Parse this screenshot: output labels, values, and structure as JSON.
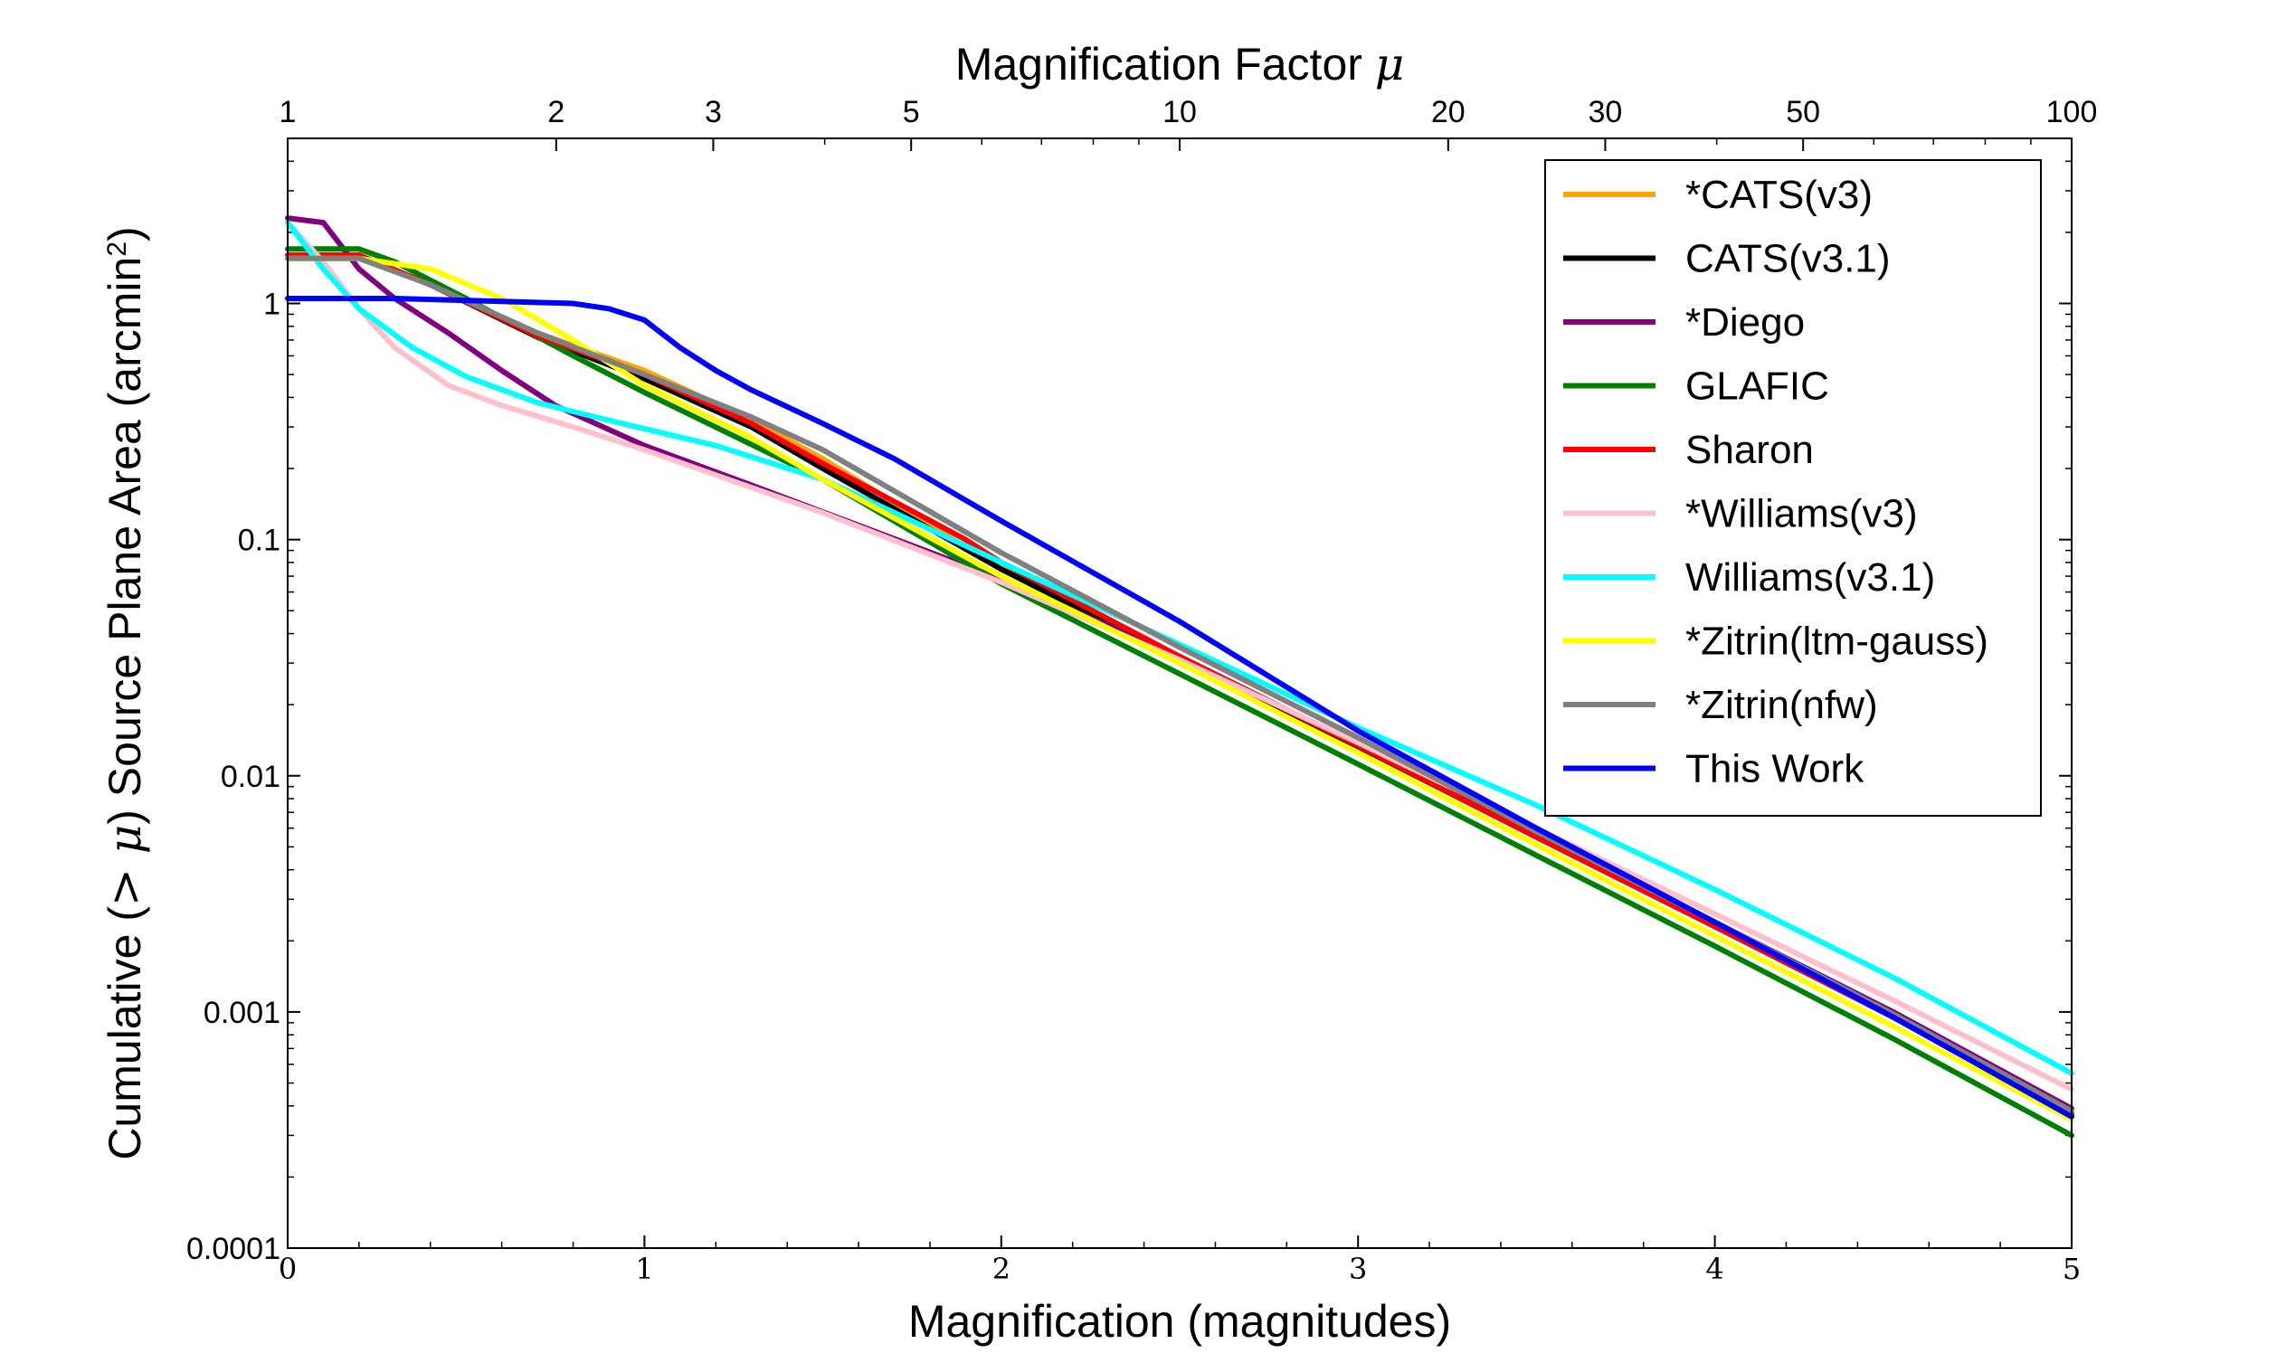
{
  "chart_data": {
    "type": "line",
    "xlabel": "Magnification (magnitudes)",
    "ylabel_parts": [
      "Cumulative (",
      "> μ",
      ") Source Plane Area (arcmin",
      "2",
      ")"
    ],
    "top_xlabel_parts": [
      "Magnification Factor ",
      "μ"
    ],
    "xlim": [
      0,
      5
    ],
    "ylim": [
      0.0001,
      5
    ],
    "yscale": "log",
    "x_ticks": [
      {
        "value": 0,
        "label": "0"
      },
      {
        "value": 1,
        "label": "1"
      },
      {
        "value": 2,
        "label": "2"
      },
      {
        "value": 3,
        "label": "3"
      },
      {
        "value": 4,
        "label": "4"
      },
      {
        "value": 5,
        "label": "5"
      }
    ],
    "y_ticks": [
      {
        "value": 0.0001,
        "label": "0.0001"
      },
      {
        "value": 0.001,
        "label": "0.001"
      },
      {
        "value": 0.01,
        "label": "0.01"
      },
      {
        "value": 0.1,
        "label": "0.1"
      },
      {
        "value": 1,
        "label": "1"
      }
    ],
    "top_ticks": [
      {
        "mu": 1,
        "label": "1"
      },
      {
        "mu": 2,
        "label": "2"
      },
      {
        "mu": 3,
        "label": "3"
      },
      {
        "mu": 5,
        "label": "5"
      },
      {
        "mu": 10,
        "label": "10"
      },
      {
        "mu": 20,
        "label": "20"
      },
      {
        "mu": 30,
        "label": "30"
      },
      {
        "mu": 50,
        "label": "50"
      },
      {
        "mu": 100,
        "label": "100"
      }
    ],
    "legend_position": "top-right",
    "series": [
      {
        "name": "*CATS(v3)",
        "color": "#FFA500",
        "points": [
          [
            0,
            1.6
          ],
          [
            0.2,
            1.6
          ],
          [
            0.4,
            1.2
          ],
          [
            0.7,
            0.75
          ],
          [
            1.0,
            0.52
          ],
          [
            1.3,
            0.32
          ],
          [
            1.5,
            0.22
          ],
          [
            2.0,
            0.075
          ],
          [
            2.5,
            0.032
          ],
          [
            3.0,
            0.0135
          ],
          [
            3.5,
            0.0055
          ],
          [
            4.0,
            0.0023
          ],
          [
            4.5,
            0.00095
          ],
          [
            5.0,
            0.00037
          ]
        ]
      },
      {
        "name": "CATS(v3.1)",
        "color": "#000000",
        "points": [
          [
            0,
            1.6
          ],
          [
            0.2,
            1.6
          ],
          [
            0.4,
            1.2
          ],
          [
            0.7,
            0.72
          ],
          [
            1.0,
            0.48
          ],
          [
            1.3,
            0.3
          ],
          [
            1.5,
            0.2
          ],
          [
            2.0,
            0.075
          ],
          [
            2.5,
            0.031
          ],
          [
            3.0,
            0.0133
          ],
          [
            3.5,
            0.0055
          ],
          [
            4.0,
            0.0023
          ],
          [
            4.5,
            0.00095
          ],
          [
            5.0,
            0.00037
          ]
        ]
      },
      {
        "name": "*Diego",
        "color": "#800080",
        "points": [
          [
            0,
            2.3
          ],
          [
            0.1,
            2.2
          ],
          [
            0.2,
            1.4
          ],
          [
            0.3,
            1.05
          ],
          [
            0.45,
            0.75
          ],
          [
            0.6,
            0.52
          ],
          [
            0.75,
            0.37
          ],
          [
            1.0,
            0.25
          ],
          [
            1.3,
            0.17
          ],
          [
            1.6,
            0.115
          ],
          [
            2.0,
            0.068
          ],
          [
            2.5,
            0.032
          ],
          [
            3.0,
            0.0135
          ],
          [
            3.5,
            0.0057
          ],
          [
            4.0,
            0.0024
          ],
          [
            4.5,
            0.001
          ],
          [
            5.0,
            0.00039
          ]
        ]
      },
      {
        "name": "GLAFIC",
        "color": "#008000",
        "points": [
          [
            0,
            1.7
          ],
          [
            0.2,
            1.7
          ],
          [
            0.3,
            1.5
          ],
          [
            0.5,
            1.05
          ],
          [
            0.8,
            0.6
          ],
          [
            1.0,
            0.42
          ],
          [
            1.5,
            0.18
          ],
          [
            2.0,
            0.065
          ],
          [
            2.5,
            0.027
          ],
          [
            3.0,
            0.0112
          ],
          [
            3.5,
            0.0046
          ],
          [
            4.0,
            0.0019
          ],
          [
            4.5,
            0.00077
          ],
          [
            5.0,
            0.0003
          ]
        ]
      },
      {
        "name": "Sharon",
        "color": "#FF0000",
        "points": [
          [
            0,
            1.6
          ],
          [
            0.2,
            1.6
          ],
          [
            0.4,
            1.2
          ],
          [
            0.7,
            0.73
          ],
          [
            1.0,
            0.5
          ],
          [
            1.3,
            0.31
          ],
          [
            1.5,
            0.21
          ],
          [
            1.9,
            0.1
          ],
          [
            2.0,
            0.08
          ],
          [
            2.5,
            0.032
          ],
          [
            3.0,
            0.0134
          ],
          [
            3.5,
            0.0055
          ],
          [
            4.0,
            0.0023
          ],
          [
            4.5,
            0.00095
          ],
          [
            5.0,
            0.00037
          ]
        ]
      },
      {
        "name": "*Williams(v3)",
        "color": "#FFC0CB",
        "points": [
          [
            0,
            2.2
          ],
          [
            0.1,
            1.5
          ],
          [
            0.2,
            0.95
          ],
          [
            0.3,
            0.65
          ],
          [
            0.45,
            0.45
          ],
          [
            0.6,
            0.37
          ],
          [
            0.8,
            0.3
          ],
          [
            1.0,
            0.24
          ],
          [
            1.5,
            0.13
          ],
          [
            2.0,
            0.066
          ],
          [
            2.5,
            0.031
          ],
          [
            3.0,
            0.0138
          ],
          [
            3.5,
            0.006
          ],
          [
            4.0,
            0.0026
          ],
          [
            4.5,
            0.00112
          ],
          [
            5.0,
            0.00047
          ]
        ]
      },
      {
        "name": "Williams(v3.1)",
        "color": "#00FFFF",
        "points": [
          [
            0,
            2.2
          ],
          [
            0.1,
            1.4
          ],
          [
            0.2,
            0.95
          ],
          [
            0.35,
            0.65
          ],
          [
            0.5,
            0.49
          ],
          [
            0.7,
            0.38
          ],
          [
            0.9,
            0.32
          ],
          [
            1.2,
            0.25
          ],
          [
            1.5,
            0.18
          ],
          [
            2.0,
            0.08
          ],
          [
            2.5,
            0.036
          ],
          [
            3.0,
            0.016
          ],
          [
            3.5,
            0.0075
          ],
          [
            4.0,
            0.0033
          ],
          [
            4.5,
            0.0014
          ],
          [
            5.0,
            0.00055
          ]
        ]
      },
      {
        "name": "*Zitrin(ltm-gauss)",
        "color": "#FFFF00",
        "points": [
          [
            0,
            1.55
          ],
          [
            0.2,
            1.55
          ],
          [
            0.4,
            1.4
          ],
          [
            0.6,
            1.05
          ],
          [
            0.8,
            0.7
          ],
          [
            1.0,
            0.45
          ],
          [
            1.3,
            0.27
          ],
          [
            1.5,
            0.18
          ],
          [
            2.0,
            0.07
          ],
          [
            2.5,
            0.03
          ],
          [
            3.0,
            0.0125
          ],
          [
            3.5,
            0.0051
          ],
          [
            4.0,
            0.0021
          ],
          [
            4.5,
            0.00087
          ],
          [
            5.0,
            0.00035
          ]
        ]
      },
      {
        "name": "*Zitrin(nfw)",
        "color": "#808080",
        "points": [
          [
            0,
            1.55
          ],
          [
            0.2,
            1.55
          ],
          [
            0.4,
            1.2
          ],
          [
            0.7,
            0.75
          ],
          [
            1.0,
            0.5
          ],
          [
            1.3,
            0.33
          ],
          [
            1.5,
            0.24
          ],
          [
            2.0,
            0.088
          ],
          [
            2.5,
            0.035
          ],
          [
            3.0,
            0.0145
          ],
          [
            3.5,
            0.0058
          ],
          [
            4.0,
            0.0024
          ],
          [
            4.5,
            0.00098
          ],
          [
            5.0,
            0.00038
          ]
        ]
      },
      {
        "name": "This Work",
        "color": "#0000FF",
        "points": [
          [
            0,
            1.05
          ],
          [
            0.3,
            1.05
          ],
          [
            0.6,
            1.02
          ],
          [
            0.8,
            1.0
          ],
          [
            0.9,
            0.95
          ],
          [
            1.0,
            0.85
          ],
          [
            1.1,
            0.65
          ],
          [
            1.2,
            0.52
          ],
          [
            1.3,
            0.43
          ],
          [
            1.5,
            0.31
          ],
          [
            1.7,
            0.22
          ],
          [
            2.0,
            0.12
          ],
          [
            2.5,
            0.045
          ],
          [
            3.0,
            0.0155
          ],
          [
            3.5,
            0.006
          ],
          [
            4.0,
            0.0024
          ],
          [
            4.5,
            0.00095
          ],
          [
            5.0,
            0.00036
          ]
        ]
      }
    ]
  }
}
